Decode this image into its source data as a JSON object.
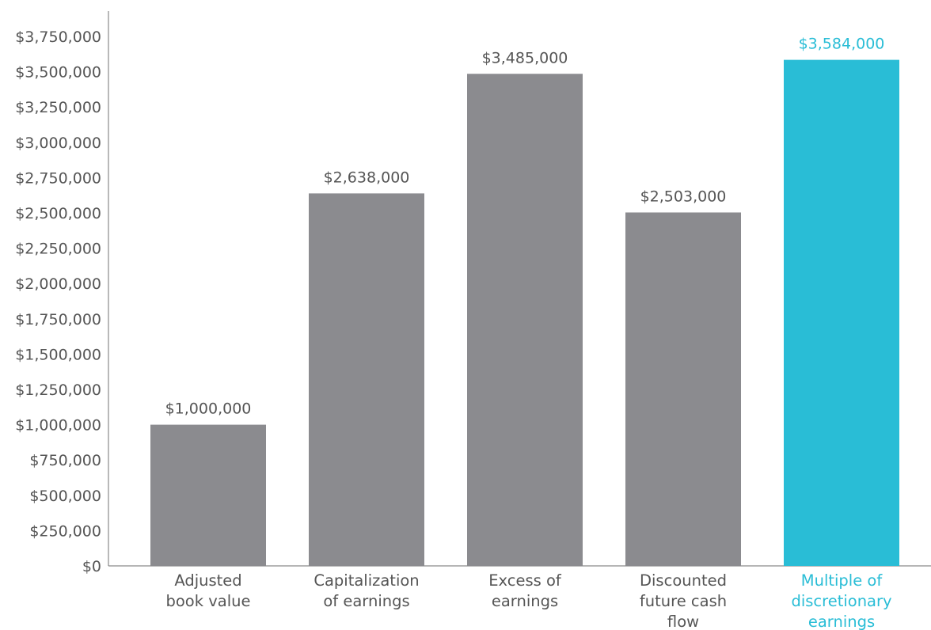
{
  "chart_data": {
    "type": "bar",
    "categories": [
      [
        "Adjusted",
        "book value"
      ],
      [
        "Capitalization",
        "of earnings"
      ],
      [
        "Excess of",
        "earnings"
      ],
      [
        "Discounted",
        "future cash",
        "flow"
      ],
      [
        "Multiple of",
        "discretionary",
        "earnings"
      ]
    ],
    "values": [
      1000000,
      2638000,
      3485000,
      2503000,
      3584000
    ],
    "data_labels": [
      "$1,000,000",
      "$2,638,000",
      "$3,485,000",
      "$2,503,000",
      "$3,584,000"
    ],
    "highlight_index": 4,
    "ylim": [
      0,
      3750000
    ],
    "y_ticks": [
      0,
      250000,
      500000,
      750000,
      1000000,
      1250000,
      1500000,
      1750000,
      2000000,
      2250000,
      2500000,
      2750000,
      3000000,
      3250000,
      3500000,
      3750000
    ],
    "y_tick_labels": [
      "$0",
      "$250,000",
      "$500,000",
      "$750,000",
      "$1,000,000",
      "$1,250,000",
      "$1,500,000",
      "$1,750,000",
      "$2,000,000",
      "$2,250,000",
      "$2,500,000",
      "$2,750,000",
      "$3,000,000",
      "$3,250,000",
      "$3,500,000",
      "$3,750,000"
    ],
    "title": "",
    "xlabel": "",
    "ylabel": "",
    "grid": false,
    "colors": {
      "bar": "#8b8b8f",
      "highlight": "#29bdd6",
      "axis": "#8a8a8a",
      "text": "#555555"
    }
  }
}
